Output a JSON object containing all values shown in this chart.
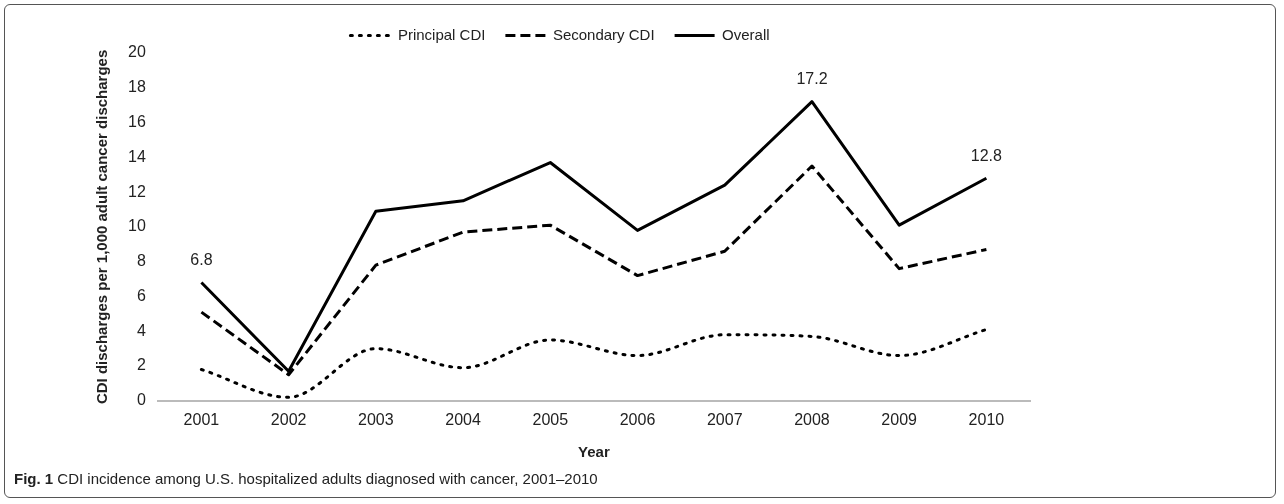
{
  "chart_data": {
    "type": "line",
    "xlabel": "Year",
    "ylabel": "CDI discharges per 1,000 adult cancer discharges",
    "categories": [
      "2001",
      "2002",
      "2003",
      "2004",
      "2005",
      "2006",
      "2007",
      "2008",
      "2009",
      "2010"
    ],
    "series": [
      {
        "name": "Principal CDI",
        "color": "#000000",
        "line_style": "dotted",
        "values": [
          1.8,
          0.2,
          3.0,
          1.9,
          3.5,
          2.6,
          3.8,
          3.7,
          2.6,
          4.1
        ]
      },
      {
        "name": "Secondary CDI",
        "color": "#000000",
        "line_style": "dashed",
        "values": [
          5.1,
          1.5,
          7.8,
          9.7,
          10.1,
          7.2,
          8.6,
          13.5,
          7.6,
          8.7
        ]
      },
      {
        "name": "Overall",
        "color": "#000000",
        "line_style": "solid",
        "values": [
          6.8,
          1.7,
          10.9,
          11.5,
          13.7,
          9.8,
          12.4,
          17.2,
          10.1,
          12.8
        ],
        "value_labels": [
          "6.8",
          null,
          null,
          null,
          null,
          null,
          null,
          "17.2",
          null,
          "12.8"
        ]
      }
    ],
    "ylim": [
      0,
      20
    ],
    "yticks": [
      0,
      2,
      4,
      6,
      8,
      10,
      12,
      14,
      16,
      18,
      20
    ],
    "grid": false,
    "legend": "top",
    "marker": "none",
    "annotations": [
      "Fig. 1 CDI incidence among U.S. hospitalized adults diagnosed with cancer, 2001–2010"
    ]
  }
}
